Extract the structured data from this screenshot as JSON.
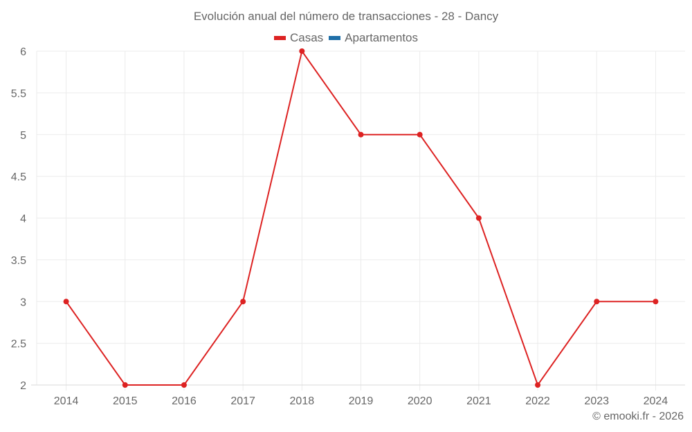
{
  "chart_data": {
    "type": "line",
    "title": "Evolución anual del número de transacciones - 28 - Dancy",
    "categories": [
      "2014",
      "2015",
      "2016",
      "2017",
      "2018",
      "2019",
      "2020",
      "2021",
      "2022",
      "2023",
      "2024"
    ],
    "series": [
      {
        "name": "Casas",
        "color": "#dd2222",
        "values": [
          3,
          2,
          2,
          3,
          6,
          5,
          5,
          4,
          2,
          3,
          3
        ]
      },
      {
        "name": "Apartamentos",
        "color": "#1f6fa8",
        "values": []
      }
    ],
    "xlabel": "",
    "ylabel": "",
    "ylim": [
      2,
      6
    ],
    "yticks": [
      "2",
      "2.5",
      "3",
      "3.5",
      "4",
      "4.5",
      "5",
      "5.5",
      "6"
    ],
    "grid": true,
    "legend_position": "top"
  },
  "legend": {
    "items": [
      {
        "label": "Casas",
        "color": "#dd2222"
      },
      {
        "label": "Apartamentos",
        "color": "#1f6fa8"
      }
    ]
  },
  "credit": "© emooki.fr - 2026"
}
